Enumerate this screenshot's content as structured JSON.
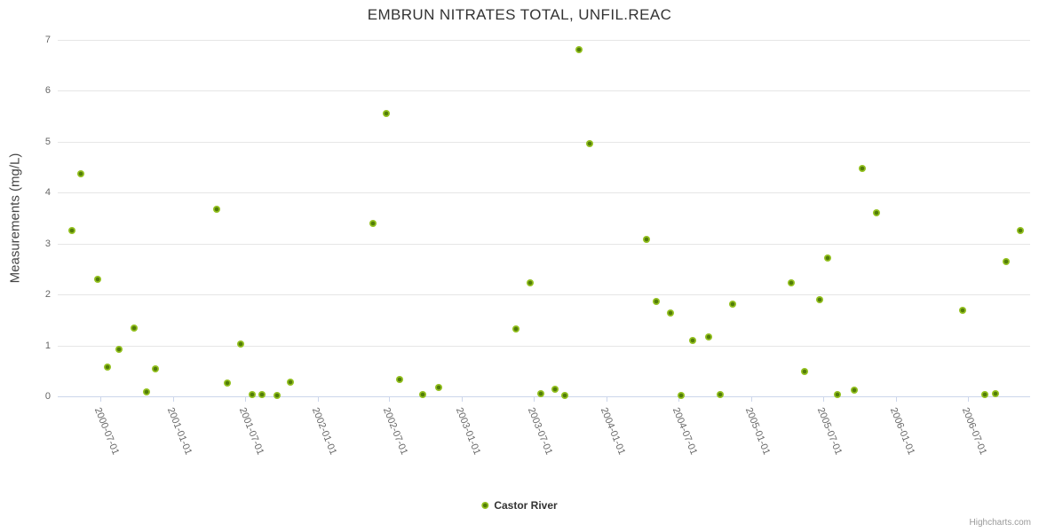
{
  "title": "EMBRUN NITRATES TOTAL, UNFIL.REAC",
  "legend": {
    "series_label": "Castor River"
  },
  "credits": "Highcharts.com",
  "colors": {
    "marker_outer": "#94c120",
    "marker_inner": "#527d08",
    "grid": "#e6e6e6",
    "axis_line": "#ccd6eb",
    "tick_label": "#666666",
    "title_color": "#333333"
  },
  "chart_data": {
    "type": "scatter",
    "title": "EMBRUN NITRATES TOTAL, UNFIL.REAC",
    "xlabel": "",
    "ylabel": "Measurements (mg/L)",
    "ylim": [
      0,
      7
    ],
    "y_ticks": [
      0,
      1,
      2,
      3,
      4,
      5,
      6,
      7
    ],
    "x_axis_type": "datetime",
    "x_range": [
      "2000-03-15",
      "2006-12-06"
    ],
    "x_ticks": [
      "2000-07-01",
      "2001-01-01",
      "2001-07-01",
      "2002-01-01",
      "2002-07-01",
      "2003-01-01",
      "2003-07-01",
      "2004-01-01",
      "2004-07-01",
      "2005-01-01",
      "2005-07-01",
      "2006-01-01",
      "2006-07-01"
    ],
    "grid": "horizontal",
    "legend_position": "bottom-center",
    "series": [
      {
        "name": "Castor River",
        "points": [
          {
            "date": "2000-04-20",
            "value": 3.25
          },
          {
            "date": "2000-05-12",
            "value": 4.37
          },
          {
            "date": "2000-06-24",
            "value": 2.3
          },
          {
            "date": "2000-07-19",
            "value": 0.57
          },
          {
            "date": "2000-08-17",
            "value": 0.93
          },
          {
            "date": "2000-09-24",
            "value": 1.34
          },
          {
            "date": "2000-10-26",
            "value": 0.09
          },
          {
            "date": "2000-11-17",
            "value": 0.54
          },
          {
            "date": "2001-04-21",
            "value": 3.67
          },
          {
            "date": "2001-05-18",
            "value": 0.26
          },
          {
            "date": "2001-06-20",
            "value": 1.03
          },
          {
            "date": "2001-07-19",
            "value": 0.04
          },
          {
            "date": "2001-08-13",
            "value": 0.04
          },
          {
            "date": "2001-09-20",
            "value": 0.01
          },
          {
            "date": "2001-10-24",
            "value": 0.28
          },
          {
            "date": "2002-05-21",
            "value": 3.39
          },
          {
            "date": "2002-06-23",
            "value": 5.55
          },
          {
            "date": "2002-07-27",
            "value": 0.33
          },
          {
            "date": "2002-09-23",
            "value": 0.04
          },
          {
            "date": "2002-11-02",
            "value": 0.17
          },
          {
            "date": "2003-05-17",
            "value": 1.33
          },
          {
            "date": "2003-06-22",
            "value": 2.23
          },
          {
            "date": "2003-07-19",
            "value": 0.05
          },
          {
            "date": "2003-08-24",
            "value": 0.14
          },
          {
            "date": "2003-09-17",
            "value": 0.01
          },
          {
            "date": "2003-10-23",
            "value": 6.8
          },
          {
            "date": "2003-11-19",
            "value": 4.97
          },
          {
            "date": "2004-04-11",
            "value": 3.09
          },
          {
            "date": "2004-05-05",
            "value": 1.86
          },
          {
            "date": "2004-06-10",
            "value": 1.63
          },
          {
            "date": "2004-07-07",
            "value": 0.01
          },
          {
            "date": "2004-08-05",
            "value": 1.09
          },
          {
            "date": "2004-09-15",
            "value": 1.17
          },
          {
            "date": "2004-10-14",
            "value": 0.04
          },
          {
            "date": "2004-11-15",
            "value": 1.81
          },
          {
            "date": "2005-04-11",
            "value": 2.23
          },
          {
            "date": "2005-05-15",
            "value": 0.49
          },
          {
            "date": "2005-06-22",
            "value": 1.9
          },
          {
            "date": "2005-07-13",
            "value": 2.72
          },
          {
            "date": "2005-08-06",
            "value": 0.04
          },
          {
            "date": "2005-09-18",
            "value": 0.12
          },
          {
            "date": "2005-10-08",
            "value": 4.48
          },
          {
            "date": "2005-11-13",
            "value": 3.6
          },
          {
            "date": "2006-06-18",
            "value": 1.69
          },
          {
            "date": "2006-08-13",
            "value": 0.04
          },
          {
            "date": "2006-09-09",
            "value": 0.05
          },
          {
            "date": "2006-10-06",
            "value": 2.65
          },
          {
            "date": "2006-11-11",
            "value": 3.25
          }
        ]
      }
    ]
  }
}
